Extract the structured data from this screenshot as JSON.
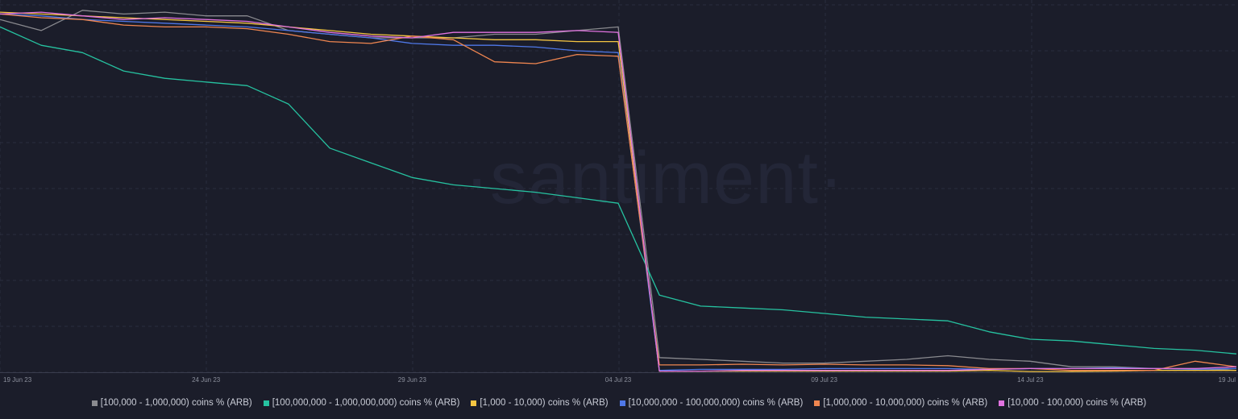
{
  "chart_data": {
    "type": "line",
    "watermark": "·santiment·",
    "x_ticks": [
      "19 Jun 23",
      "24 Jun 23",
      "29 Jun 23",
      "04 Jul 23",
      "09 Jul 23",
      "14 Jul 23",
      "19 Jul"
    ],
    "x": [
      "2023-06-19",
      "2023-06-20",
      "2023-06-21",
      "2023-06-22",
      "2023-06-23",
      "2023-06-24",
      "2023-06-25",
      "2023-06-26",
      "2023-06-27",
      "2023-06-28",
      "2023-06-29",
      "2023-06-30",
      "2023-07-01",
      "2023-07-02",
      "2023-07-03",
      "2023-07-04",
      "2023-07-05",
      "2023-07-06",
      "2023-07-07",
      "2023-07-08",
      "2023-07-09",
      "2023-07-10",
      "2023-07-11",
      "2023-07-12",
      "2023-07-13",
      "2023-07-14",
      "2023-07-15",
      "2023-07-16",
      "2023-07-17",
      "2023-07-18",
      "2023-07-19"
    ],
    "ylim": [
      0,
      100
    ],
    "grid": true,
    "legend_position": "bottom",
    "series": [
      {
        "name": "[100,000  - 1,000,000) coins % (ARB)",
        "color": "#8a8a8f",
        "values": [
          96,
          93,
          98.5,
          97.5,
          98,
          97,
          97,
          93,
          92,
          91,
          91,
          91,
          92,
          92,
          93,
          94,
          4,
          3.5,
          3,
          2.5,
          2.5,
          3,
          3.5,
          4.5,
          3.5,
          3,
          1.5,
          1.5,
          1,
          1,
          0.5
        ]
      },
      {
        "name": "[100,000,000 - 1,000,000,000) coins % (ARB)",
        "color": "#26c2a0",
        "values": [
          94,
          89,
          87,
          82,
          80,
          79,
          78,
          73,
          61,
          57,
          53,
          51,
          50,
          49,
          47.5,
          46,
          21,
          18,
          17.5,
          17,
          16,
          15,
          14.5,
          14,
          11,
          9,
          8.5,
          7.5,
          6.5,
          6,
          5
        ]
      },
      {
        "name": "[1,000 - 10,000) coins % (ARB)",
        "color": "#f5c542",
        "values": [
          98,
          97.5,
          97,
          96.5,
          96,
          95.5,
          95,
          94,
          93,
          92,
          91.5,
          91,
          90.5,
          90.5,
          90,
          90,
          0.3,
          0.3,
          0.3,
          0.3,
          0.3,
          0.3,
          0.3,
          0.3,
          0.5,
          0.2,
          0.2,
          0.3,
          0.5,
          0.5,
          0.5
        ]
      },
      {
        "name": "[10,000,000 - 100,000,000) coins % (ARB)",
        "color": "#4f78e8",
        "values": [
          97.5,
          97,
          96,
          95.5,
          95,
          94.5,
          94,
          93,
          92,
          91,
          89.5,
          89,
          89,
          88.5,
          87.5,
          87,
          0.5,
          0.8,
          0.8,
          0.8,
          1,
          1,
          1,
          1,
          0.8,
          1,
          1,
          1.2,
          1,
          0.8,
          1
        ]
      },
      {
        "name": "[1,000,000 - 10,000,000) coins % (ARB)",
        "color": "#f08650",
        "values": [
          97.5,
          96.5,
          96,
          94.5,
          94,
          94,
          93.5,
          92,
          90,
          89.5,
          91.5,
          90.5,
          84.5,
          84,
          86.5,
          86,
          2,
          2,
          2.2,
          2,
          2.2,
          2,
          2,
          1.8,
          1,
          1,
          0.5,
          0.5,
          0.5,
          3,
          1.5
        ]
      },
      {
        "name": "[10,000 - 100,000) coins % (ARB)",
        "color": "#e173e0",
        "values": [
          97.5,
          98,
          97,
          96,
          96.5,
          96,
          95.5,
          94,
          92.5,
          91.5,
          91,
          92.5,
          92.5,
          92.5,
          93,
          92.5,
          0.3,
          0.3,
          0.5,
          0.5,
          0.5,
          0.5,
          0.5,
          0.5,
          0.8,
          1,
          1,
          1,
          1,
          1,
          1.5
        ]
      }
    ]
  }
}
